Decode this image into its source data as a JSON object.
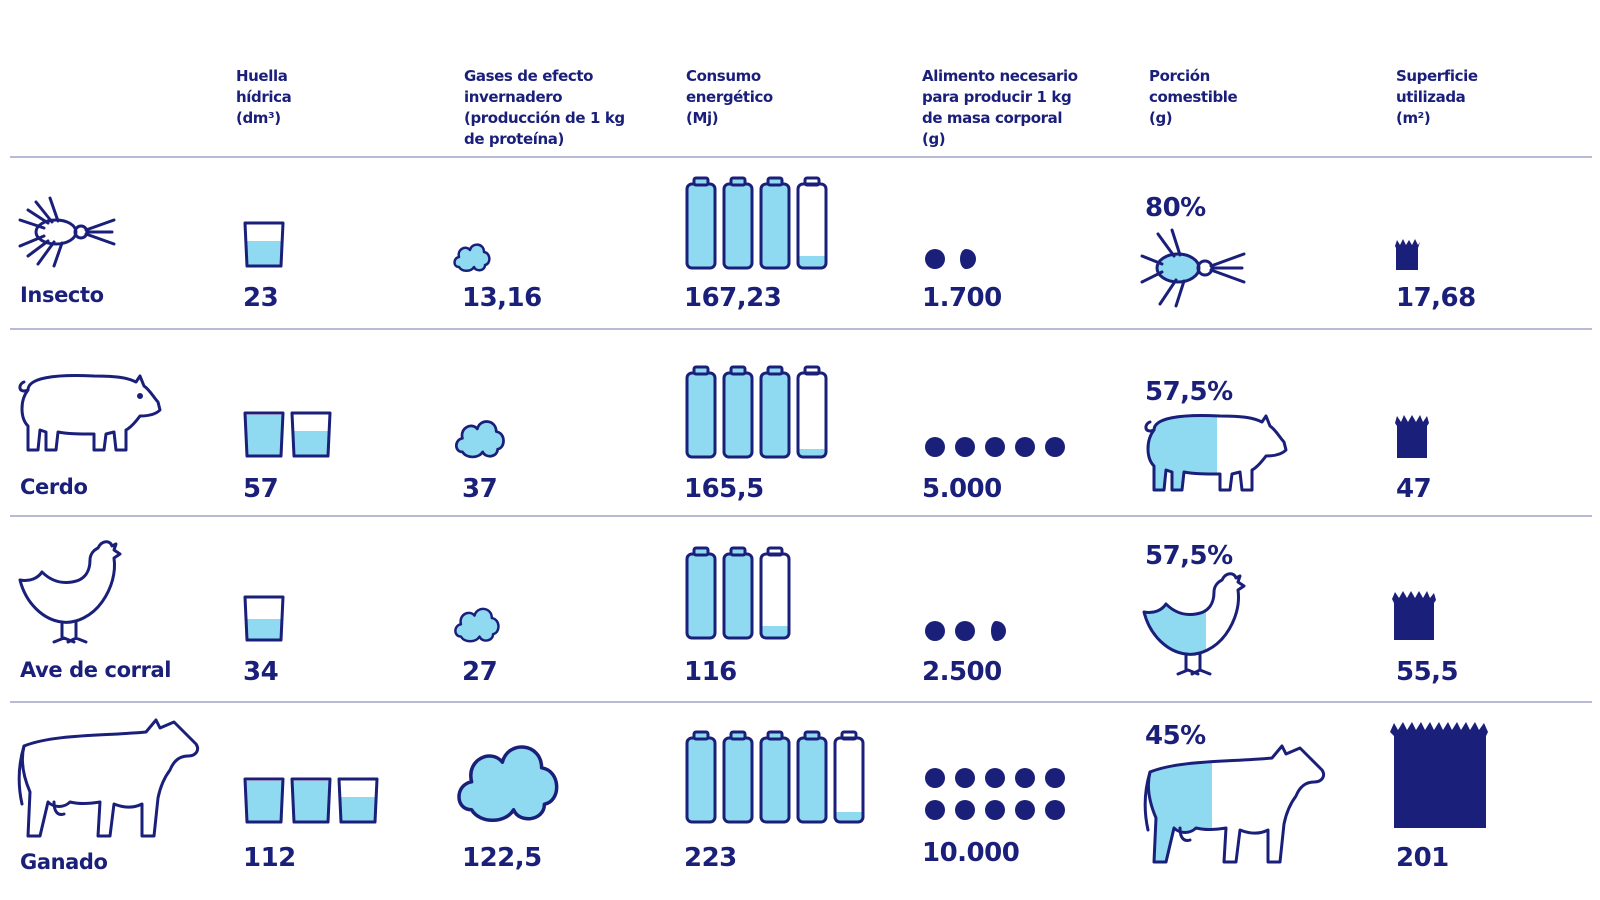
{
  "colors": {
    "navy": "#1a1f7a",
    "fill": "#8fdaf0",
    "rule": "#b9bbd6"
  },
  "columns": [
    {
      "key": "water",
      "header": "Huella\nhídrica\n(dm³)"
    },
    {
      "key": "ghg",
      "header": "Gases de efecto\ninvernadero\n(producción de 1 kg\nde proteína)"
    },
    {
      "key": "energy",
      "header": "Consumo\nenergético\n(Mj)"
    },
    {
      "key": "feed",
      "header": "Alimento necesario\npara producir 1 kg\nde masa corporal\n(g)"
    },
    {
      "key": "edible",
      "header": "Porción\ncomestible\n(g)"
    },
    {
      "key": "land",
      "header": "Superficie\nutilizada\n(m²)"
    }
  ],
  "chart_data": {
    "type": "table",
    "rows": [
      {
        "animal": "Insecto",
        "icon": "insect-icon",
        "water": "23",
        "ghg": "13,16",
        "energy": "167,23",
        "feed": "1.700",
        "edible_pct": "80%",
        "land": "17,68",
        "water_v": 23,
        "ghg_v": 13.16,
        "energy_v": 167.23,
        "feed_v": 1700,
        "edible_v": 80,
        "land_v": 17.68
      },
      {
        "animal": "Cerdo",
        "icon": "pig-icon",
        "water": "57",
        "ghg": "37",
        "energy": "165,5",
        "feed": "5.000",
        "edible_pct": "57,5%",
        "land": "47",
        "water_v": 57,
        "ghg_v": 37,
        "energy_v": 165.5,
        "feed_v": 5000,
        "edible_v": 57.5,
        "land_v": 47
      },
      {
        "animal": "Ave de corral",
        "icon": "chicken-icon",
        "water": "34",
        "ghg": "27",
        "energy": "116",
        "feed": "2.500",
        "edible_pct": "57,5%",
        "land": "55,5",
        "water_v": 34,
        "ghg_v": 27,
        "energy_v": 116,
        "feed_v": 2500,
        "edible_v": 57.5,
        "land_v": 55.5
      },
      {
        "animal": "Ganado",
        "icon": "cow-icon",
        "water": "112",
        "ghg": "122,5",
        "energy": "223",
        "feed": "10.000",
        "edible_pct": "45%",
        "land": "201",
        "water_v": 112,
        "ghg_v": 122.5,
        "energy_v": 223,
        "feed_v": 10000,
        "edible_v": 45,
        "land_v": 201
      }
    ]
  }
}
